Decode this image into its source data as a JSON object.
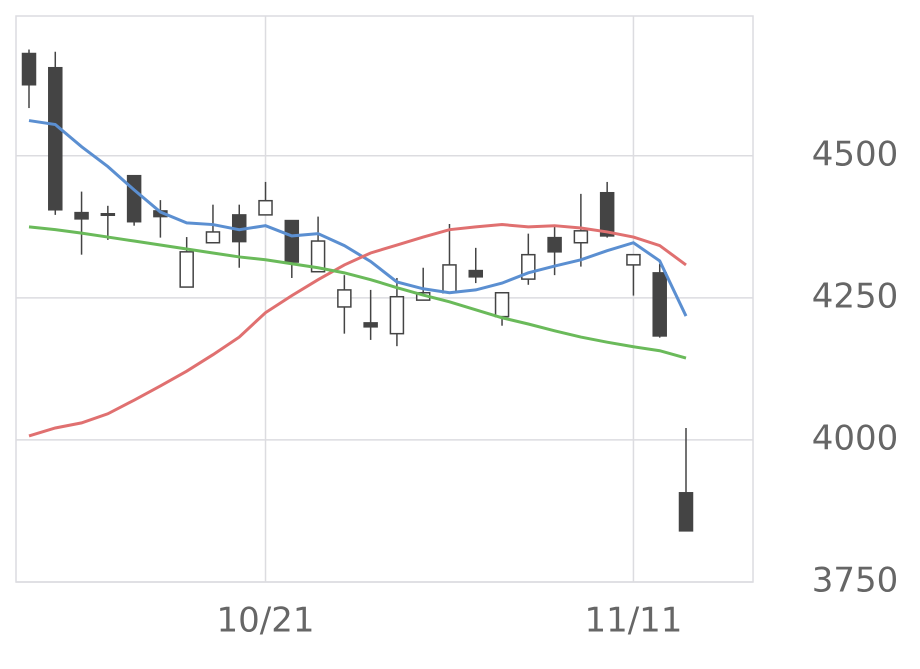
{
  "chart_data": {
    "type": "candlestick",
    "categories": [
      null,
      null,
      null,
      null,
      null,
      null,
      null,
      null,
      null,
      "10/21",
      null,
      null,
      null,
      null,
      null,
      null,
      null,
      null,
      null,
      null,
      null,
      null,
      null,
      "11/11",
      null,
      null
    ],
    "open": [
      4680,
      4655,
      4400,
      4398,
      4465,
      4403,
      4269,
      4347,
      4396,
      4396,
      4386,
      4296,
      4234,
      4206,
      4187,
      4246,
      4259,
      4298,
      4217,
      4283,
      4356,
      4347,
      4435,
      4308,
      4294,
      3907
    ],
    "high": [
      4687,
      4683,
      4437,
      4412,
      4465,
      4422,
      4357,
      4414,
      4414,
      4454,
      4386,
      4393,
      4290,
      4264,
      4285,
      4303,
      4380,
      4338,
      4259,
      4363,
      4375,
      4433,
      4454,
      4326,
      4310,
      4021
    ],
    "low": [
      4584,
      4396,
      4326,
      4352,
      4377,
      4356,
      4269,
      4347,
      4303,
      4396,
      4285,
      4296,
      4187,
      4176,
      4165,
      4246,
      4259,
      4276,
      4201,
      4273,
      4290,
      4305,
      4356,
      4254,
      4180,
      3840
    ],
    "close": [
      4625,
      4405,
      4389,
      4396,
      4384,
      4393,
      4331,
      4366,
      4349,
      4421,
      4313,
      4350,
      4264,
      4199,
      4252,
      4259,
      4308,
      4287,
      4259,
      4326,
      4331,
      4368,
      4359,
      4326,
      4183,
      3840
    ],
    "up_color": "#ffffff",
    "down_color": "#444444",
    "edge_color": "#444444",
    "lines": [
      {
        "color": "#5b8fd1",
        "values": [
          4562,
          4555,
          4516,
          4481,
          4440,
          4401,
          4382,
          4379,
          4370,
          4377,
          4359,
          4363,
          4342,
          4314,
          4278,
          4266,
          4259,
          4264,
          4276,
          4294,
          4306,
          4317,
          4333,
          4347,
          4315,
          4218
        ]
      },
      {
        "color": "#e07070",
        "values": [
          4007,
          4021,
          4030,
          4046,
          4070,
          4095,
          4121,
          4150,
          4181,
          4224,
          4254,
          4282,
          4308,
          4329,
          4343,
          4357,
          4370,
          4375,
          4379,
          4375,
          4377,
          4373,
          4366,
          4357,
          4342,
          4308
        ]
      },
      {
        "color": "#6aba5a",
        "values": [
          4375,
          4370,
          4364,
          4357,
          4350,
          4343,
          4336,
          4329,
          4322,
          4317,
          4310,
          4303,
          4294,
          4282,
          4268,
          4255,
          4243,
          4229,
          4215,
          4204,
          4192,
          4181,
          4172,
          4164,
          4157,
          4144
        ]
      }
    ],
    "ylim": [
      3750,
      4746
    ],
    "yticks": [
      3750,
      4000,
      4250,
      4500
    ],
    "grid": true
  }
}
